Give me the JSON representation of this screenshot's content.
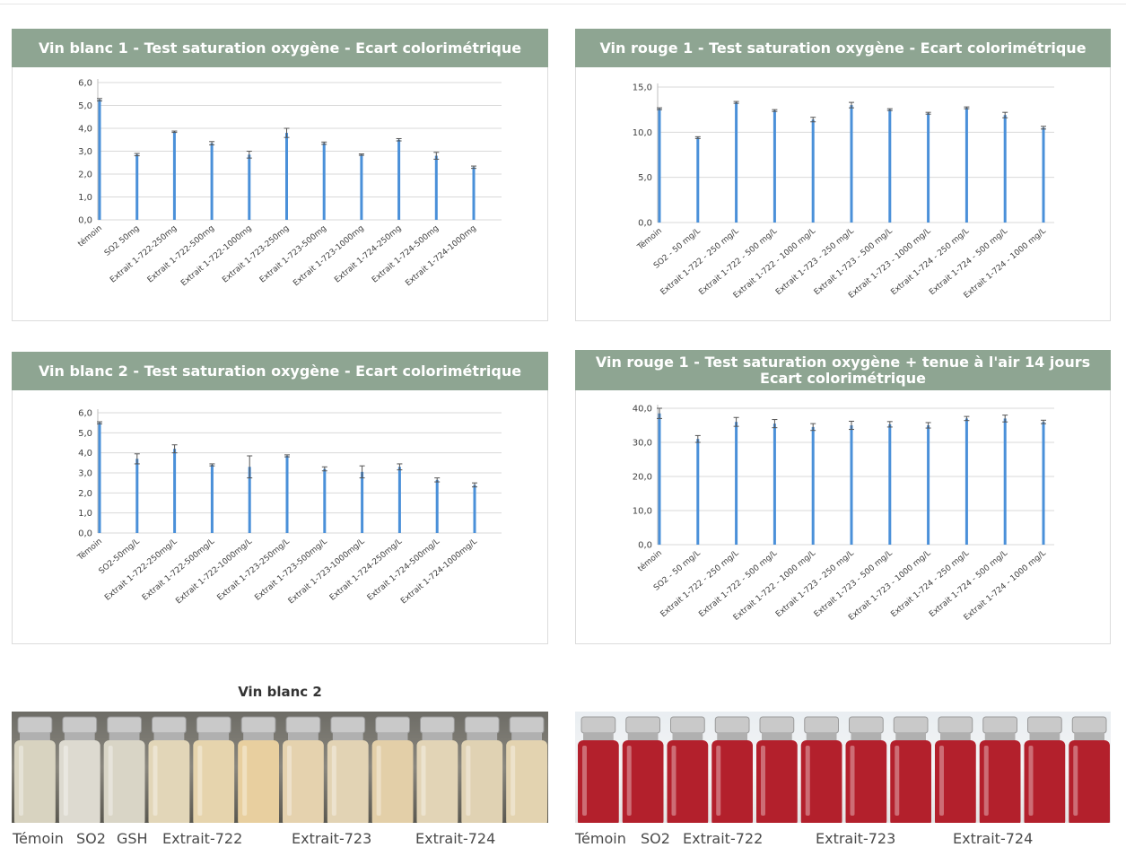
{
  "chart_data": [
    {
      "type": "bar",
      "title": "Vin blanc 1 - Test saturation oxygène - Ecart colorimétrique",
      "categories": [
        "témoin",
        "SO2 50mg",
        "Extrait 1-722-250mg",
        "Extrait 1-722-500mg",
        "Extrait 1-722-1000mg",
        "Extrait 1-723-250mg",
        "Extrait 1-723-500mg",
        "Extrait 1-723-1000mg",
        "Extrait 1-724-250mg",
        "Extrait 1-724-500mg",
        "Extrait 1-724-1000mg"
      ],
      "values": [
        5.25,
        2.85,
        3.85,
        3.35,
        2.85,
        3.8,
        3.35,
        2.85,
        3.5,
        2.8,
        2.3
      ],
      "errors": [
        0.05,
        0.05,
        0.03,
        0.07,
        0.15,
        0.2,
        0.05,
        0.03,
        0.05,
        0.15,
        0.05
      ],
      "yticks": [
        "0,0",
        "1,0",
        "2,0",
        "3,0",
        "4,0",
        "5,0",
        "6,0"
      ],
      "ylim": [
        0,
        6
      ],
      "grid": true
    },
    {
      "type": "bar",
      "title": "Vin rouge 1 - Test saturation oxygène - Ecart colorimétrique",
      "categories": [
        "Témoin",
        "SO2 - 50 mg/L",
        "Extrait 1-722 - 250 mg/L",
        "Extrait 1-722 - 500 mg/L",
        "Extrait 1-722 - 1000 mg/L",
        "Extrait 1-723 - 250 mg/L",
        "Extrait 1-723 - 500 mg/L",
        "Extrait 1-723 - 1000 mg/L",
        "Extrait 1-724 - 250 mg/L",
        "Extrait 1-724 - 500 mg/L",
        "Extrait 1-724 - 1000 mg/L"
      ],
      "values": [
        12.6,
        9.4,
        13.3,
        12.4,
        11.4,
        13.0,
        12.5,
        12.1,
        12.7,
        11.9,
        10.5
      ],
      "errors": [
        0.1,
        0.1,
        0.1,
        0.1,
        0.25,
        0.3,
        0.1,
        0.1,
        0.1,
        0.3,
        0.15
      ],
      "yticks": [
        "0,0",
        "5,0",
        "10,0",
        "15,0"
      ],
      "ylim": [
        0,
        15
      ],
      "grid": true
    },
    {
      "type": "bar",
      "title": "Vin blanc 2 - Test saturation oxygène - Ecart colorimétrique",
      "categories": [
        "Témoin",
        "SO2-50mg/L",
        "Extrait 1-722-250mg/L",
        "Extrait 1-722-500mg/L",
        "Extrait 1-722-1000mg/L",
        "Extrait 1-723-250mg/L",
        "Extrait 1-723-500mg/L",
        "Extrait 1-723-1000mg/L",
        "Extrait 1-724-250mg/L",
        "Extrait 1-724-500mg/L",
        "Extrait 1-724-1000mg/L"
      ],
      "values": [
        5.5,
        3.7,
        4.2,
        3.4,
        3.3,
        3.85,
        3.2,
        3.05,
        3.3,
        2.65,
        2.4
      ],
      "errors": [
        0.05,
        0.25,
        0.2,
        0.05,
        0.55,
        0.05,
        0.1,
        0.3,
        0.15,
        0.1,
        0.1
      ],
      "yticks": [
        "0,0",
        "1,0",
        "2,0",
        "3,0",
        "4,0",
        "5,0",
        "6,0"
      ],
      "ylim": [
        0,
        6
      ],
      "grid": true
    },
    {
      "type": "bar",
      "title": "Vin rouge 1 - Test saturation oxygène + tenue à l'air 14 jours",
      "subtitle": "Ecart colorimétrique",
      "categories": [
        "témoin",
        "SO2 - 50 mg/L",
        "Extrait 1-722 - 250 mg/L",
        "Extrait 1-722 - 500 mg/L",
        "Extrait 1-722 - 1000 mg/L",
        "Extrait 1-723 - 250 mg/L",
        "Extrait 1-723 - 500 mg/L",
        "Extrait 1-723 - 1000 mg/L",
        "Extrait 1-724 - 250 mg/L",
        "Extrait 1-724 - 500 mg/L",
        "Extrait 1-724 - 1000 mg/L"
      ],
      "values": [
        38.5,
        31.0,
        36.0,
        35.5,
        34.5,
        35.0,
        35.3,
        35.0,
        37.0,
        37.0,
        36.0
      ],
      "errors": [
        1.5,
        1.0,
        1.3,
        1.2,
        1.0,
        1.2,
        0.8,
        0.8,
        0.6,
        1.0,
        0.5
      ],
      "yticks": [
        "0,0",
        "10,0",
        "20,0",
        "30,0",
        "40,0"
      ],
      "ylim": [
        0,
        40
      ],
      "grid": true
    }
  ],
  "photos": {
    "white": {
      "title": "Vin blanc 2",
      "captions": [
        "Témoin",
        "SO2",
        "GSH",
        "Extrait-722",
        "Extrait-723",
        "Extrait-724"
      ],
      "vial_count": 12,
      "liquid_colors": [
        "#d8d3c0",
        "#dddad0",
        "#d9d5c6",
        "#e2d6b8",
        "#e6d4ad",
        "#e8cf9f",
        "#e5d2ae",
        "#e2d3b4",
        "#e3cfa8",
        "#e2d4b6",
        "#e0d2b3",
        "#e3d3b0"
      ]
    },
    "red": {
      "captions": [
        "Témoin",
        "SO2",
        "Extrait-722",
        "Extrait-723",
        "Extrait-724"
      ],
      "vial_count": 12,
      "liquid_color": "#b3202c"
    }
  },
  "colors": {
    "header": "#8ea592",
    "bar": "#4a90d9",
    "grid": "#d9d9d9"
  }
}
